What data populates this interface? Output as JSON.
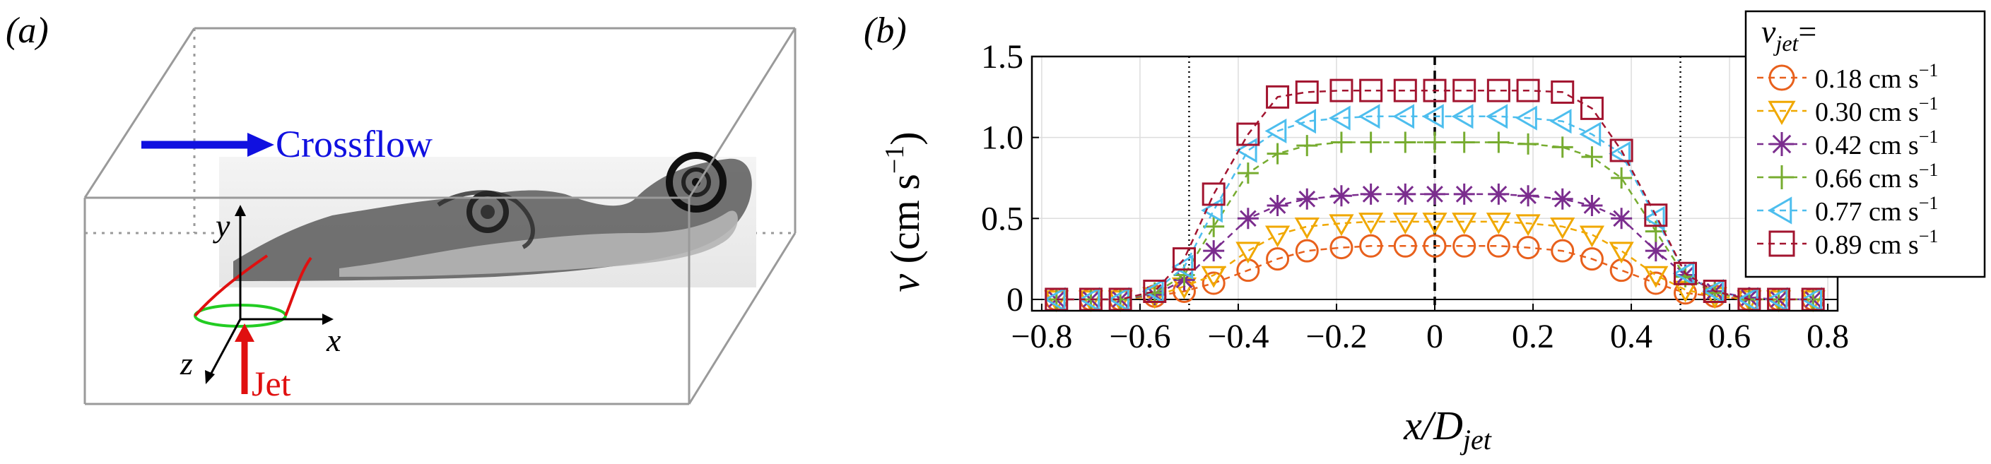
{
  "panel_a": {
    "label": "(a)",
    "crossflow_label": "Crossflow",
    "jet_label": "Jet",
    "axis_x": "x",
    "axis_y": "y",
    "axis_z": "z",
    "colors": {
      "crossflow": "#1010e0",
      "jet": "#e01010",
      "nozzle": "#22cc22",
      "box": "#9a9a9a"
    }
  },
  "panel_b": {
    "label": "(b)"
  },
  "chart_data": {
    "type": "line",
    "title": "",
    "xlabel": "x/D_jet",
    "ylabel": "v (cm s^-1)",
    "xlim": [
      -0.82,
      0.82
    ],
    "ylim": [
      -0.07,
      1.5
    ],
    "xticks": [
      -0.8,
      -0.6,
      -0.4,
      -0.2,
      0,
      0.2,
      0.4,
      0.6,
      0.8
    ],
    "xtick_labels": [
      "−0.8",
      "−0.6",
      "−0.4",
      "−0.2",
      "0",
      "0.2",
      "0.4",
      "0.6",
      "0.8"
    ],
    "yticks": [
      0,
      0.5,
      1.0,
      1.5
    ],
    "ytick_labels": [
      "0",
      "0.5",
      "1.0",
      "1.5"
    ],
    "grid": true,
    "reference_lines": {
      "dotted": [
        -0.5,
        0.5
      ],
      "dashed": [
        0
      ]
    },
    "legend_title": "v_jet =",
    "legend_position": "top-right",
    "x": [
      -0.77,
      -0.7,
      -0.64,
      -0.57,
      -0.51,
      -0.45,
      -0.38,
      -0.32,
      -0.26,
      -0.19,
      -0.13,
      -0.06,
      0.0,
      0.06,
      0.13,
      0.19,
      0.26,
      0.32,
      0.38,
      0.45,
      0.51,
      0.57,
      0.64,
      0.7,
      0.77
    ],
    "series": [
      {
        "name": "0.18 cm s⁻¹",
        "label_value": "0.18 cm s",
        "marker": "circle",
        "color": "#e8601c",
        "values": [
          0.0,
          0.0,
          0.0,
          0.02,
          0.05,
          0.1,
          0.18,
          0.25,
          0.3,
          0.32,
          0.33,
          0.33,
          0.33,
          0.33,
          0.33,
          0.32,
          0.3,
          0.25,
          0.18,
          0.1,
          0.04,
          0.02,
          0.0,
          0.0,
          0.0
        ]
      },
      {
        "name": "0.30 cm s⁻¹",
        "label_value": "0.30 cm s",
        "marker": "triangle-down",
        "color": "#f0a800",
        "values": [
          0.0,
          0.0,
          0.0,
          0.02,
          0.08,
          0.15,
          0.3,
          0.4,
          0.45,
          0.47,
          0.48,
          0.48,
          0.48,
          0.48,
          0.48,
          0.47,
          0.45,
          0.4,
          0.3,
          0.15,
          0.06,
          0.02,
          0.0,
          0.0,
          0.0
        ]
      },
      {
        "name": "0.42 cm s⁻¹",
        "label_value": "0.42 cm s",
        "marker": "asterisk",
        "color": "#7b2d8e",
        "values": [
          0.0,
          0.0,
          0.0,
          0.03,
          0.12,
          0.3,
          0.5,
          0.58,
          0.62,
          0.64,
          0.65,
          0.65,
          0.65,
          0.65,
          0.65,
          0.64,
          0.62,
          0.58,
          0.5,
          0.3,
          0.15,
          0.05,
          0.01,
          0.0,
          0.0
        ]
      },
      {
        "name": "0.66 cm s⁻¹",
        "label_value": "0.66 cm s",
        "marker": "plus",
        "color": "#77ac30",
        "values": [
          0.0,
          0.0,
          0.0,
          0.04,
          0.15,
          0.45,
          0.78,
          0.9,
          0.95,
          0.97,
          0.97,
          0.97,
          0.97,
          0.97,
          0.97,
          0.96,
          0.94,
          0.88,
          0.75,
          0.42,
          0.14,
          0.04,
          0.0,
          0.0,
          0.0
        ]
      },
      {
        "name": "0.77 cm s⁻¹",
        "label_value": "0.77 cm s",
        "marker": "triangle-left",
        "color": "#4dbeee",
        "values": [
          0.0,
          0.0,
          0.0,
          0.05,
          0.2,
          0.55,
          0.92,
          1.04,
          1.1,
          1.12,
          1.13,
          1.13,
          1.13,
          1.13,
          1.13,
          1.12,
          1.1,
          1.02,
          0.9,
          0.5,
          0.16,
          0.05,
          0.0,
          0.0,
          0.0
        ]
      },
      {
        "name": "0.89 cm s⁻¹",
        "label_value": "0.89 cm s",
        "marker": "square",
        "color": "#a2142f",
        "values": [
          0.0,
          0.0,
          0.0,
          0.05,
          0.25,
          0.65,
          1.02,
          1.25,
          1.28,
          1.29,
          1.29,
          1.29,
          1.29,
          1.29,
          1.29,
          1.29,
          1.28,
          1.18,
          0.92,
          0.52,
          0.16,
          0.05,
          0.0,
          0.0,
          0.0
        ]
      }
    ]
  }
}
